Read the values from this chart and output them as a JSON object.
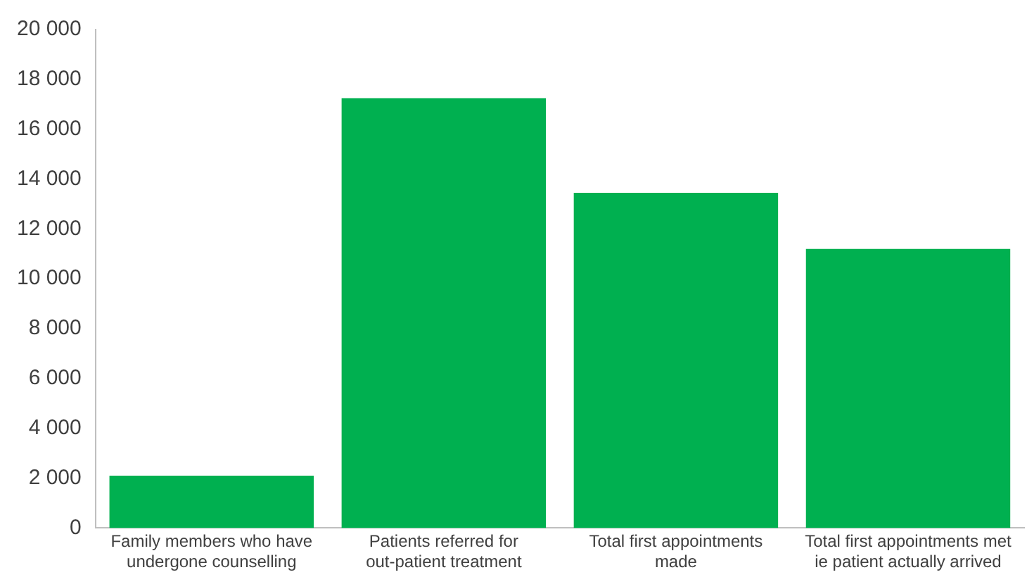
{
  "chart_data": {
    "type": "bar",
    "categories": [
      "Family members who have undergone counselling",
      "Patients referred for out-patient treatment",
      "Total first appointments made",
      "Total first appointments met ie patient actually arrived"
    ],
    "values": [
      2100,
      17250,
      13450,
      11200
    ],
    "color": "#00b050",
    "ylim": [
      0,
      20000
    ],
    "yticks": [
      {
        "value": 0,
        "label": "0"
      },
      {
        "value": 2000,
        "label": "2 000"
      },
      {
        "value": 4000,
        "label": "4 000"
      },
      {
        "value": 6000,
        "label": "6 000"
      },
      {
        "value": 8000,
        "label": "8 000"
      },
      {
        "value": 10000,
        "label": "10 000"
      },
      {
        "value": 12000,
        "label": "12 000"
      },
      {
        "value": 14000,
        "label": "14 000"
      },
      {
        "value": 16000,
        "label": "16 000"
      },
      {
        "value": 18000,
        "label": "18 000"
      },
      {
        "value": 20000,
        "label": "20 000"
      }
    ],
    "grid": false,
    "legend": false
  }
}
